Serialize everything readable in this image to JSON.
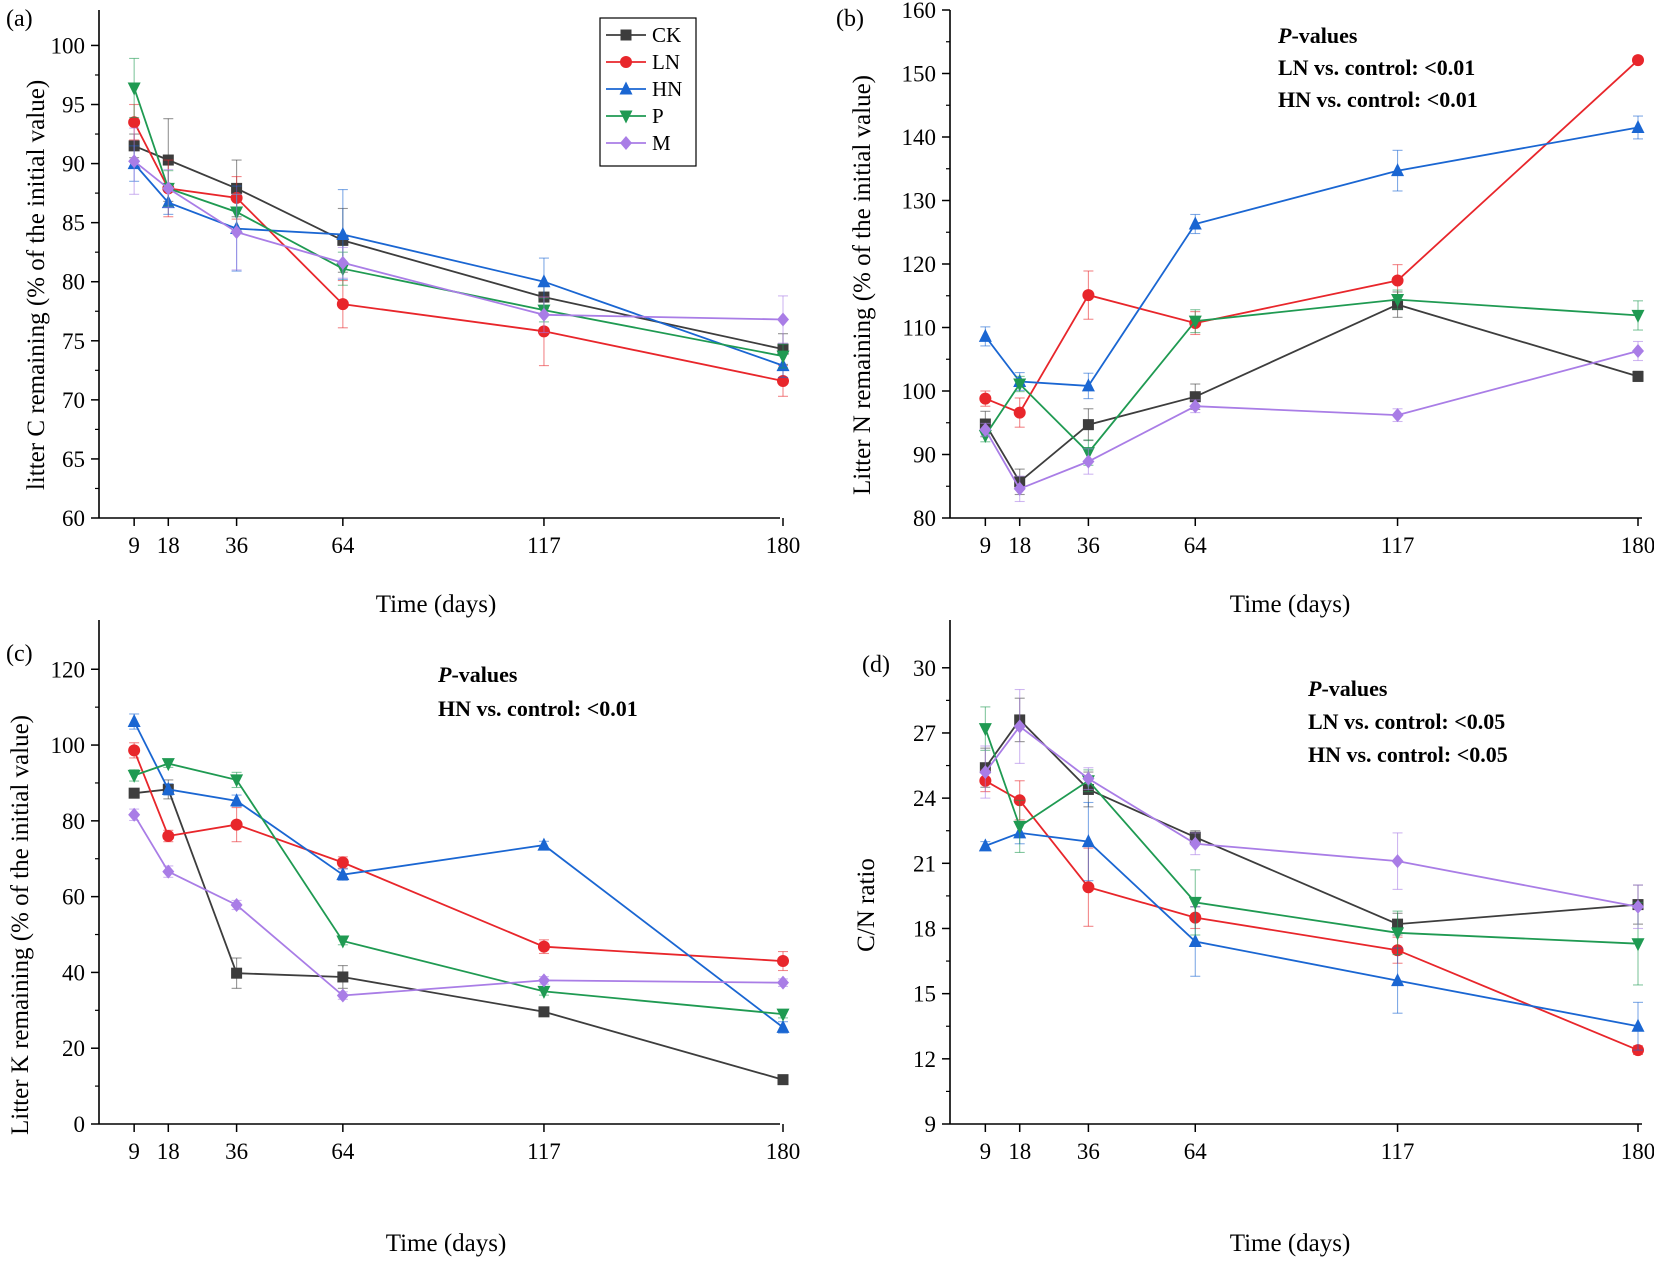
{
  "series_styles": [
    {
      "key": "CK",
      "color": "#3d3d3d",
      "marker": "square"
    },
    {
      "key": "LN",
      "color": "#e8262b",
      "marker": "circle"
    },
    {
      "key": "HN",
      "color": "#1a66d2",
      "marker": "triangle-up"
    },
    {
      "key": "P",
      "color": "#1f9a52",
      "marker": "triangle-down"
    },
    {
      "key": "M",
      "color": "#a97de6",
      "marker": "diamond"
    }
  ],
  "legend": {
    "entries": [
      "CK",
      "LN",
      "HN",
      "P",
      "M"
    ]
  },
  "chart_data": [
    {
      "panel": "(a)",
      "type": "line",
      "title": "",
      "xlabel": "Time (days)",
      "ylabel": "litter C remaining (% of the initial value)",
      "x": [
        9,
        18,
        36,
        64,
        117,
        180
      ],
      "xticks": [
        "9",
        "18",
        "36",
        "64",
        "117",
        "180"
      ],
      "xlim": [
        0,
        180
      ],
      "ylim": [
        60,
        103
      ],
      "yticks": [
        60,
        65,
        70,
        75,
        80,
        85,
        90,
        95,
        100
      ],
      "series": [
        {
          "name": "CK",
          "values": [
            91.5,
            90.3,
            87.9,
            83.5,
            78.7,
            74.3
          ],
          "errors": [
            1.0,
            3.5,
            2.4,
            2.7,
            1.0,
            1.3
          ]
        },
        {
          "name": "LN",
          "values": [
            93.5,
            87.9,
            87.1,
            78.1,
            75.8,
            71.6
          ],
          "errors": [
            1.5,
            2.4,
            1.8,
            2.0,
            2.9,
            1.3
          ]
        },
        {
          "name": "HN",
          "values": [
            90.0,
            86.7,
            84.5,
            84.0,
            80.0,
            72.9
          ],
          "errors": [
            1.5,
            1.0,
            3.6,
            3.8,
            2.0,
            1.0
          ]
        },
        {
          "name": "P",
          "values": [
            96.4,
            87.9,
            85.9,
            81.1,
            77.6,
            73.7
          ],
          "errors": [
            2.5,
            1.5,
            1.5,
            1.4,
            1.0,
            1.0
          ]
        },
        {
          "name": "M",
          "values": [
            90.2,
            87.9,
            84.2,
            81.6,
            77.2,
            76.8
          ],
          "errors": [
            2.8,
            1.6,
            3.2,
            1.3,
            1.5,
            2.0
          ]
        }
      ],
      "annotations": []
    },
    {
      "panel": "(b)",
      "type": "line",
      "title": "",
      "xlabel": "Time (days)",
      "ylabel": "Litter N remaining (% of the initial value)",
      "x": [
        9,
        18,
        36,
        64,
        117,
        180
      ],
      "xticks": [
        "9",
        "18",
        "36",
        "64",
        "117",
        "180"
      ],
      "xlim": [
        0,
        180
      ],
      "ylim": [
        80,
        160
      ],
      "yticks": [
        80,
        90,
        100,
        110,
        120,
        130,
        140,
        150,
        160
      ],
      "series": [
        {
          "name": "CK",
          "values": [
            94.8,
            85.7,
            94.7,
            99.1,
            113.6,
            102.3
          ],
          "errors": [
            2.0,
            2.0,
            2.5,
            2.0,
            2.0,
            0.8
          ]
        },
        {
          "name": "LN",
          "values": [
            98.8,
            96.6,
            115.1,
            110.7,
            117.4,
            152.1
          ],
          "errors": [
            1.2,
            2.3,
            3.8,
            1.8,
            2.5,
            0.5
          ]
        },
        {
          "name": "HN",
          "values": [
            108.6,
            101.5,
            100.8,
            126.3,
            134.7,
            141.5
          ],
          "errors": [
            1.5,
            1.4,
            2.0,
            1.5,
            3.2,
            1.8
          ]
        },
        {
          "name": "P",
          "values": [
            93.0,
            101.1,
            90.3,
            111.0,
            114.4,
            111.9
          ],
          "errors": [
            1.0,
            1.2,
            2.0,
            1.8,
            1.5,
            2.3
          ]
        },
        {
          "name": "M",
          "values": [
            93.9,
            84.6,
            88.9,
            97.6,
            96.2,
            106.3
          ],
          "errors": [
            1.0,
            2.0,
            2.0,
            1.0,
            1.0,
            1.5
          ]
        }
      ],
      "annotations": [
        "P-values",
        "LN vs. control: <0.01",
        "HN vs. control: <0.01"
      ]
    },
    {
      "panel": "(c)",
      "type": "line",
      "title": "",
      "xlabel": "Time (days)",
      "ylabel": "Litter K remaining (% of the initial value)",
      "x": [
        9,
        18,
        36,
        64,
        117,
        180
      ],
      "xticks": [
        "9",
        "18",
        "36",
        "64",
        "117",
        "180"
      ],
      "xlim": [
        0,
        180
      ],
      "ylim": [
        0,
        133
      ],
      "yticks": [
        0,
        20,
        40,
        60,
        80,
        100,
        120
      ],
      "series": [
        {
          "name": "CK",
          "values": [
            87.3,
            88.3,
            39.8,
            38.8,
            29.6,
            11.7
          ],
          "errors": [
            1.2,
            2.5,
            4.0,
            3.0,
            1.0,
            0.8
          ]
        },
        {
          "name": "LN",
          "values": [
            98.6,
            76.0,
            79.0,
            69.0,
            46.8,
            43.0
          ],
          "errors": [
            2.0,
            1.5,
            4.5,
            1.5,
            1.8,
            2.5
          ]
        },
        {
          "name": "HN",
          "values": [
            106.2,
            88.3,
            85.3,
            65.8,
            73.6,
            25.5
          ],
          "errors": [
            2.0,
            1.5,
            1.5,
            1.5,
            1.0,
            1.5
          ]
        },
        {
          "name": "P",
          "values": [
            92.0,
            95.1,
            90.8,
            48.3,
            35.0,
            29.0
          ],
          "errors": [
            1.5,
            1.0,
            2.0,
            1.0,
            1.0,
            1.0
          ]
        },
        {
          "name": "M",
          "values": [
            81.6,
            66.6,
            57.8,
            33.9,
            37.9,
            37.3
          ],
          "errors": [
            1.5,
            1.5,
            1.2,
            1.0,
            1.0,
            1.0
          ]
        }
      ],
      "annotations": [
        "P-values",
        "HN vs. control: <0.01"
      ]
    },
    {
      "panel": "(d)",
      "type": "line",
      "title": "",
      "xlabel": "Time (days)",
      "ylabel": "C/N ratio",
      "x": [
        9,
        18,
        36,
        64,
        117,
        180
      ],
      "xticks": [
        "9",
        "18",
        "36",
        "64",
        "117",
        "180"
      ],
      "xlim": [
        0,
        180
      ],
      "ylim": [
        9,
        32.2
      ],
      "yticks": [
        9,
        12,
        15,
        18,
        21,
        24,
        27,
        30
      ],
      "series": [
        {
          "name": "CK",
          "values": [
            25.4,
            27.6,
            24.4,
            22.2,
            18.2,
            19.1
          ],
          "errors": [
            0.9,
            1.0,
            0.8,
            0.3,
            0.5,
            0.9
          ]
        },
        {
          "name": "LN",
          "values": [
            24.8,
            23.9,
            19.9,
            18.5,
            17.0,
            12.4
          ],
          "errors": [
            0.5,
            0.9,
            1.8,
            0.5,
            0.6,
            0.2
          ]
        },
        {
          "name": "HN",
          "values": [
            21.8,
            22.4,
            22.0,
            17.4,
            15.6,
            13.5
          ],
          "errors": [
            0.2,
            0.5,
            1.8,
            1.6,
            1.5,
            1.1
          ]
        },
        {
          "name": "P",
          "values": [
            27.2,
            22.7,
            24.8,
            19.2,
            17.8,
            17.3
          ],
          "errors": [
            1.0,
            1.2,
            0.5,
            1.5,
            1.0,
            1.9
          ]
        },
        {
          "name": "M",
          "values": [
            25.2,
            27.3,
            24.9,
            21.9,
            21.1,
            19.0
          ],
          "errors": [
            1.2,
            1.7,
            0.5,
            0.5,
            1.3,
            1.0
          ]
        }
      ],
      "annotations": [
        "P-values",
        "LN vs. control: <0.05",
        "HN vs. control: <0.05"
      ]
    }
  ]
}
